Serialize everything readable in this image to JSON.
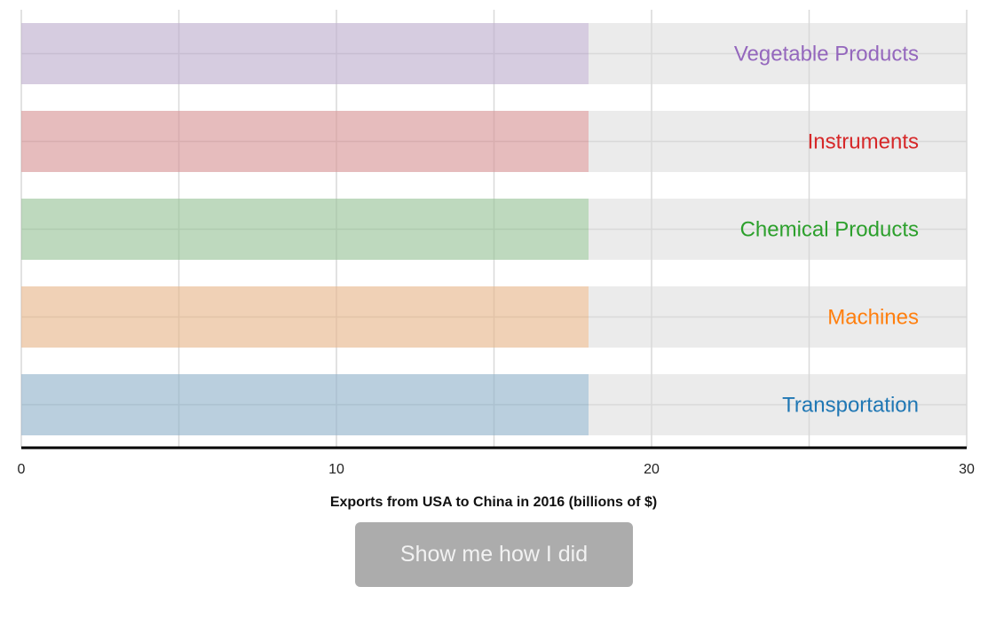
{
  "chart_data": {
    "type": "bar",
    "orientation": "horizontal",
    "categories": [
      "Vegetable Products",
      "Instruments",
      "Chemical Products",
      "Machines",
      "Transportation"
    ],
    "values": [
      18,
      18,
      18,
      18,
      18
    ],
    "category_colors": [
      "#9467bd",
      "#d62728",
      "#2ca02c",
      "#ff7f0e",
      "#1f77b4"
    ],
    "xlabel": "Exports from USA to China in 2016 (billions of $)",
    "xlim": [
      0,
      30
    ],
    "xticks": [
      0,
      10,
      20,
      30
    ],
    "xtick_labels": [
      "0",
      "10",
      "20",
      "30"
    ],
    "grid": true
  },
  "button": {
    "label": "Show me how I did"
  }
}
